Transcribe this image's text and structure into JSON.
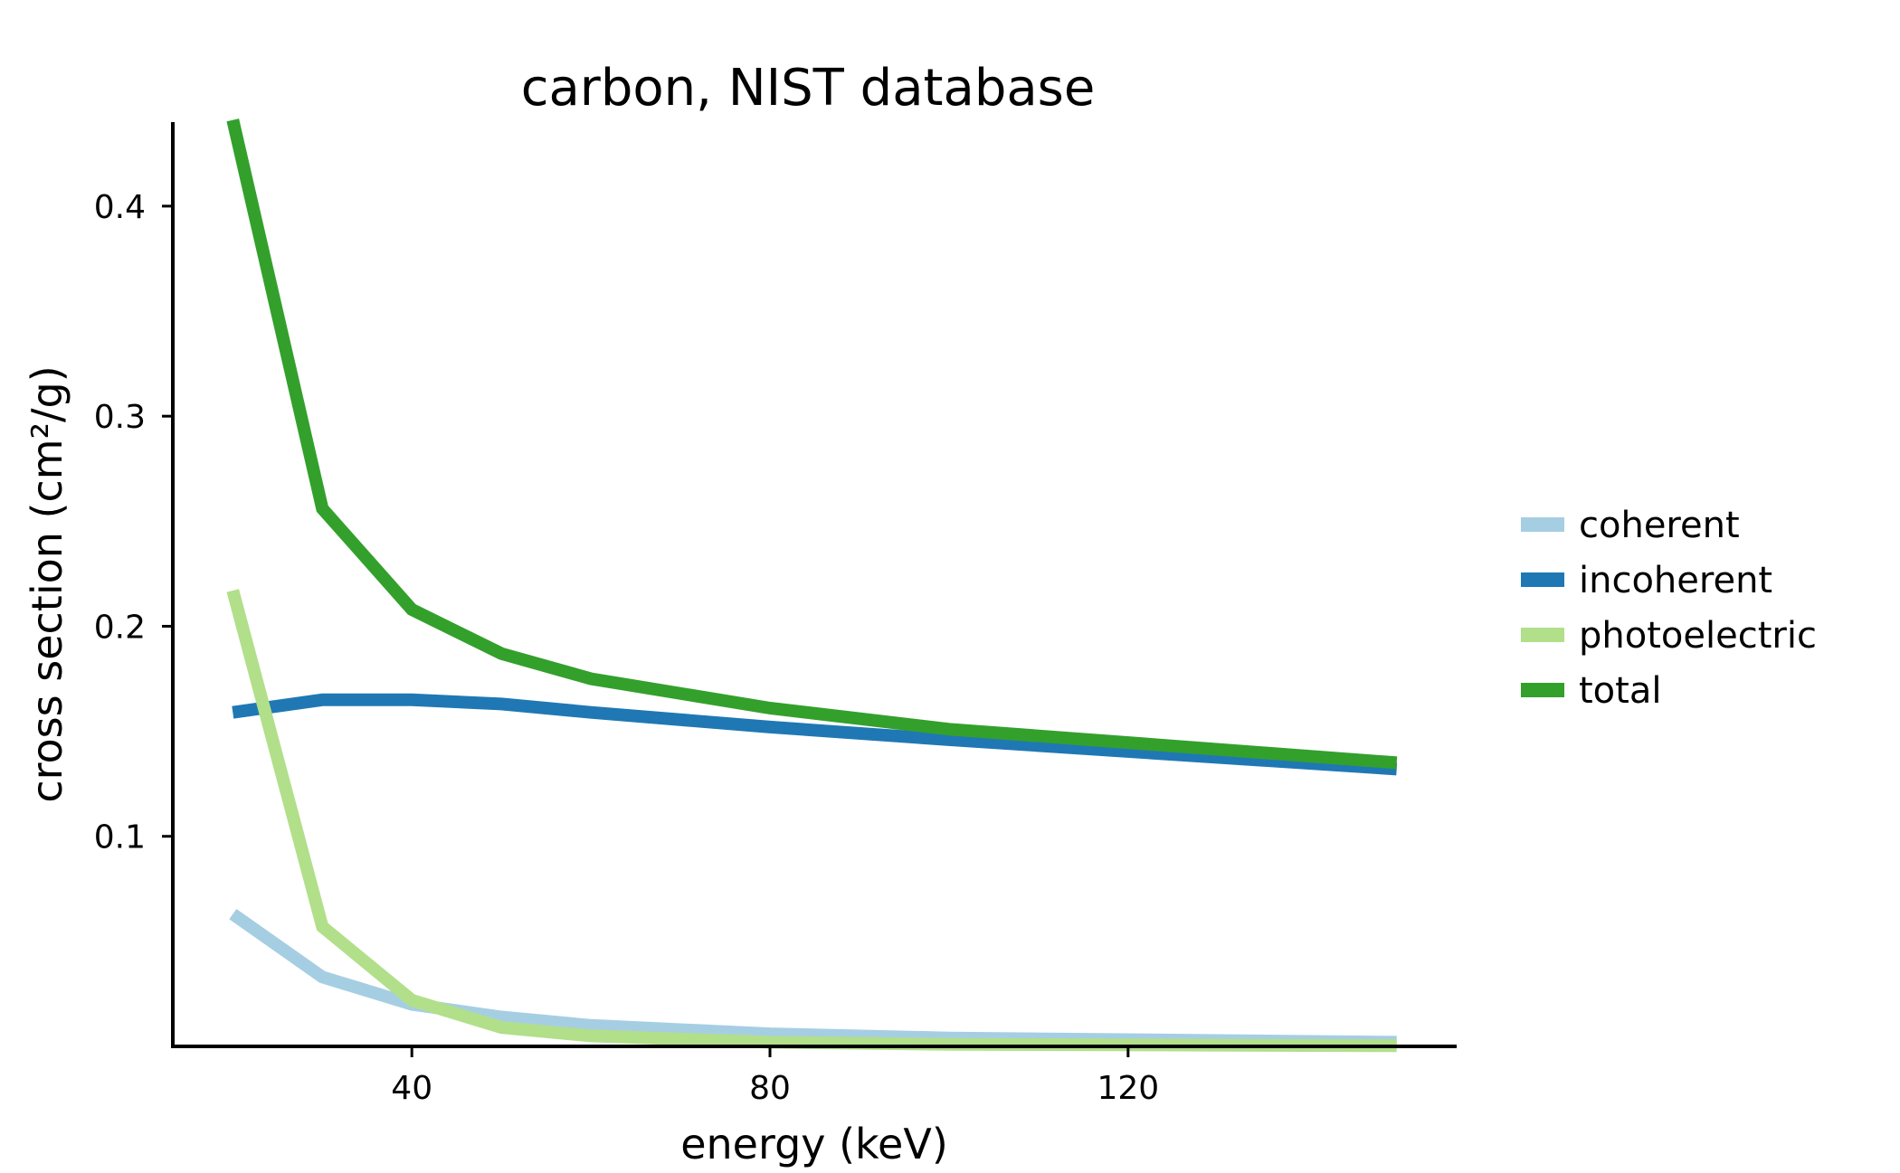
{
  "chart_data": {
    "type": "line",
    "title": "carbon, NIST database",
    "xlabel": "energy (keV)",
    "ylabel": "cross section (cm²/g)",
    "xlim": [
      13.3,
      156.7
    ],
    "ylim": [
      0.0,
      0.44
    ],
    "xticks": [
      40,
      80,
      120
    ],
    "yticks": [
      0.1,
      0.2,
      0.3,
      0.4
    ],
    "grid": false,
    "legend_position": "right",
    "x": [
      20,
      30,
      40,
      50,
      60,
      80,
      100,
      150
    ],
    "series": [
      {
        "name": "coherent",
        "color": "#a6cee3",
        "values": [
          0.063,
          0.033,
          0.02,
          0.014,
          0.01,
          0.006,
          0.004,
          0.002
        ]
      },
      {
        "name": "incoherent",
        "color": "#1f78b4",
        "values": [
          0.159,
          0.165,
          0.165,
          0.163,
          0.159,
          0.152,
          0.146,
          0.132
        ]
      },
      {
        "name": "photoelectric",
        "color": "#b2df8a",
        "values": [
          0.217,
          0.057,
          0.022,
          0.009,
          0.005,
          0.002,
          0.001,
          0.0003
        ]
      },
      {
        "name": "total",
        "color": "#33a02c",
        "values": [
          0.441,
          0.256,
          0.208,
          0.187,
          0.175,
          0.161,
          0.151,
          0.135
        ]
      }
    ]
  }
}
